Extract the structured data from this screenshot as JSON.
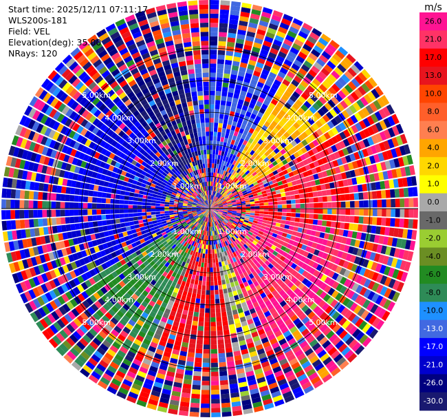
{
  "header": {
    "start_time": "Start time: 2025/12/11 07:11:17",
    "instrument": "WLS200s-181",
    "field": "Field: VEL",
    "elevation": "Elevation(deg): 35.00",
    "nrays": "NRays: 120"
  },
  "colorbar": {
    "unit": "m/s",
    "ticks": [
      "26.0",
      "21.0",
      "17.0",
      "13.0",
      "10.0",
      "8.0",
      "6.0",
      "4.0",
      "2.0",
      "1.0",
      "0.0",
      "-1.0",
      "-2.0",
      "-4.0",
      "-6.0",
      "-8.0",
      "-10.0",
      "-13.0",
      "-17.0",
      "-21.0",
      "-26.0",
      "-30.0"
    ],
    "colors": [
      "#ff1493",
      "#ff3366",
      "#ff0000",
      "#e8141e",
      "#ff4500",
      "#ff5f2a",
      "#ff7f50",
      "#ffa500",
      "#ffd700",
      "#ffff00",
      "#a9a9a9",
      "#696969",
      "#9acd32",
      "#6b8e23",
      "#228b22",
      "#2e8b57",
      "#1e90ff",
      "#4169e1",
      "#0000ff",
      "#0000cd",
      "#000080",
      "#191970"
    ]
  },
  "chart_data": {
    "type": "heatmap",
    "projection": "polar PPI",
    "field": "VEL",
    "units": "m/s",
    "nrays": 120,
    "elevation_deg": 35.0,
    "range_rings_km": [
      1.0,
      2.0,
      3.0,
      4.0,
      5.0
    ],
    "ring_label_text": [
      "1.00km",
      "2.00km",
      "3.00km",
      "4.00km",
      "5.00km"
    ],
    "max_range_km": 6.5,
    "value_range": [
      -30,
      30
    ],
    "dominant_sectors": [
      {
        "azimuth_deg": [
          30,
          60
        ],
        "velocity": 4,
        "note_color": "yellow"
      },
      {
        "azimuth_deg": [
          60,
          100
        ],
        "velocity": 21,
        "note_color": "red"
      },
      {
        "azimuth_deg": [
          100,
          160
        ],
        "velocity": 26,
        "note_color": "pink"
      },
      {
        "azimuth_deg": [
          170,
          200
        ],
        "velocity": 17,
        "note_color": "red"
      },
      {
        "azimuth_deg": [
          205,
          240
        ],
        "velocity": -6,
        "note_color": "green"
      },
      {
        "azimuth_deg": [
          240,
          320
        ],
        "velocity": -17,
        "note_color": "blue"
      },
      {
        "azimuth_deg": [
          320,
          350
        ],
        "velocity": -26,
        "note_color": "navy"
      },
      {
        "azimuth_deg": [
          350,
          30
        ],
        "velocity": -13,
        "note_color": "blue"
      }
    ]
  }
}
